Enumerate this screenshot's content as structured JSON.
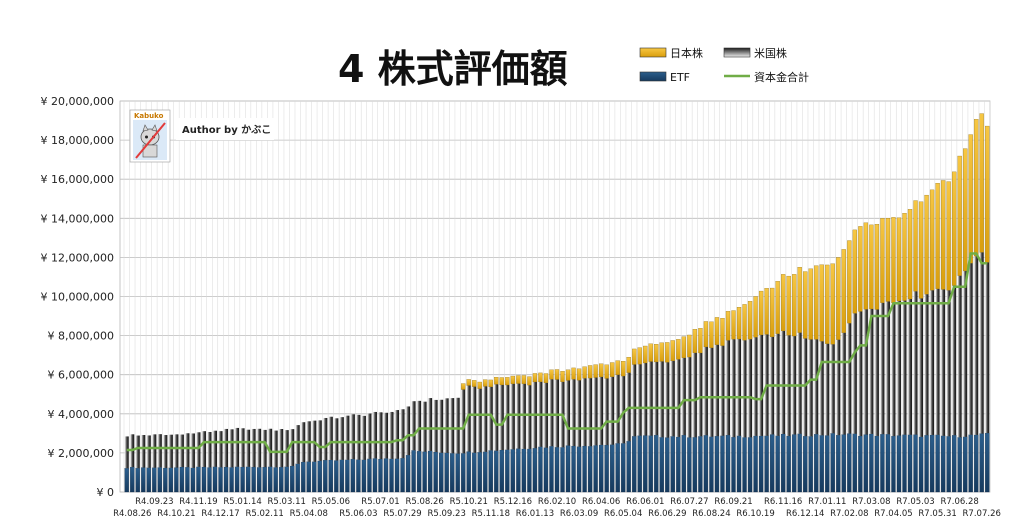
{
  "chart_data": {
    "type": "bar",
    "stacked": true,
    "title": "4  株式評価額",
    "author_label": "Author by かぶこ",
    "logo_label": "Kabuko",
    "ylim": [
      0,
      20000000
    ],
    "yticks": [
      0,
      2000000,
      4000000,
      6000000,
      8000000,
      10000000,
      12000000,
      14000000,
      16000000,
      18000000,
      20000000
    ],
    "ytick_labels": [
      "¥ 0",
      "¥ 2,000,000",
      "¥ 4,000,000",
      "¥ 6,000,000",
      "¥ 8,000,000",
      "¥ 10,000,000",
      "¥ 12,000,000",
      "¥ 14,000,000",
      "¥ 16,000,000",
      "¥ 18,000,000",
      "¥ 20,000,000"
    ],
    "grid": true,
    "legend_position": "top-right",
    "x_labels_upper": [
      "R4.09.23",
      "R4.11.19",
      "R5.01.14",
      "R5.03.11",
      "R5.05.06",
      "R5.07.01",
      "R5.08.26",
      "R5.10.21",
      "R5.12.16",
      "R6.02.10",
      "R6.04.06",
      "R6.06.01",
      "R6.07.27",
      "R6.09.21",
      "R6.11.16",
      "R7.01.11",
      "R7.03.08",
      "R7.05.03",
      "R7.06.28"
    ],
    "x_labels_lower": [
      "R4.08.26",
      "R4.10.21",
      "R4.12.17",
      "R5.02.11",
      "R5.04.08",
      "R5.06.03",
      "R5.07.29",
      "R5.09.23",
      "R5.11.18",
      "R6.01.13",
      "R6.03.09",
      "R6.05.04",
      "R6.06.29",
      "R6.08.24",
      "R6.10.19",
      "R6.12.14",
      "R7.02.08",
      "R7.04.05",
      "R7.05.31",
      "R7.07.26"
    ],
    "categories_count": 157,
    "series": [
      {
        "name": "ETF",
        "color": "#1f4e79",
        "anchors": [
          [
            0,
            1250000
          ],
          [
            10,
            1250000
          ],
          [
            30,
            1300000
          ],
          [
            32,
            1550000
          ],
          [
            50,
            1750000
          ],
          [
            52,
            2100000
          ],
          [
            60,
            2000000
          ],
          [
            75,
            2300000
          ],
          [
            90,
            2450000
          ],
          [
            92,
            2850000
          ],
          [
            110,
            2850000
          ],
          [
            130,
            2950000
          ],
          [
            150,
            2850000
          ],
          [
            156,
            2950000
          ]
        ]
      },
      {
        "name": "米国株",
        "color": "#555555",
        "anchors": [
          [
            0,
            1650000
          ],
          [
            10,
            1700000
          ],
          [
            20,
            1950000
          ],
          [
            30,
            1900000
          ],
          [
            32,
            2050000
          ],
          [
            50,
            2450000
          ],
          [
            60,
            2850000
          ],
          [
            61,
            3300000
          ],
          [
            75,
            3350000
          ],
          [
            90,
            3500000
          ],
          [
            100,
            3950000
          ],
          [
            110,
            4900000
          ],
          [
            120,
            5200000
          ],
          [
            128,
            4600000
          ],
          [
            133,
            6400000
          ],
          [
            150,
            7700000
          ],
          [
            154,
            9300000
          ],
          [
            156,
            8800000
          ]
        ]
      },
      {
        "name": "日本株",
        "color": "#f2be2a",
        "anchors": [
          [
            0,
            0
          ],
          [
            60,
            0
          ],
          [
            61,
            300000
          ],
          [
            75,
            450000
          ],
          [
            90,
            750000
          ],
          [
            100,
            1050000
          ],
          [
            110,
            1500000
          ],
          [
            120,
            3000000
          ],
          [
            128,
            4200000
          ],
          [
            133,
            4400000
          ],
          [
            140,
            4300000
          ],
          [
            150,
            5800000
          ],
          [
            154,
            6900000
          ],
          [
            156,
            7000000
          ]
        ]
      }
    ],
    "line_series": {
      "name": "資本金合計",
      "color": "#70ad47",
      "steps": [
        [
          0,
          2150000
        ],
        [
          2,
          2250000
        ],
        [
          14,
          2550000
        ],
        [
          26,
          2050000
        ],
        [
          30,
          2550000
        ],
        [
          35,
          2300000
        ],
        [
          37,
          2550000
        ],
        [
          49,
          2650000
        ],
        [
          51,
          2900000
        ],
        [
          53,
          3250000
        ],
        [
          60,
          3250000
        ],
        [
          62,
          3950000
        ],
        [
          67,
          3450000
        ],
        [
          69,
          3950000
        ],
        [
          80,
          3250000
        ],
        [
          87,
          3600000
        ],
        [
          90,
          4050000
        ],
        [
          91,
          4300000
        ],
        [
          93,
          4300000
        ],
        [
          101,
          4700000
        ],
        [
          104,
          4850000
        ],
        [
          114,
          4750000
        ],
        [
          116,
          5450000
        ],
        [
          124,
          5750000
        ],
        [
          126,
          6650000
        ],
        [
          132,
          7150000
        ],
        [
          133,
          7500000
        ],
        [
          135,
          9000000
        ],
        [
          139,
          9650000
        ],
        [
          150,
          10500000
        ],
        [
          153,
          12200000
        ],
        [
          155,
          11700000
        ]
      ]
    }
  }
}
